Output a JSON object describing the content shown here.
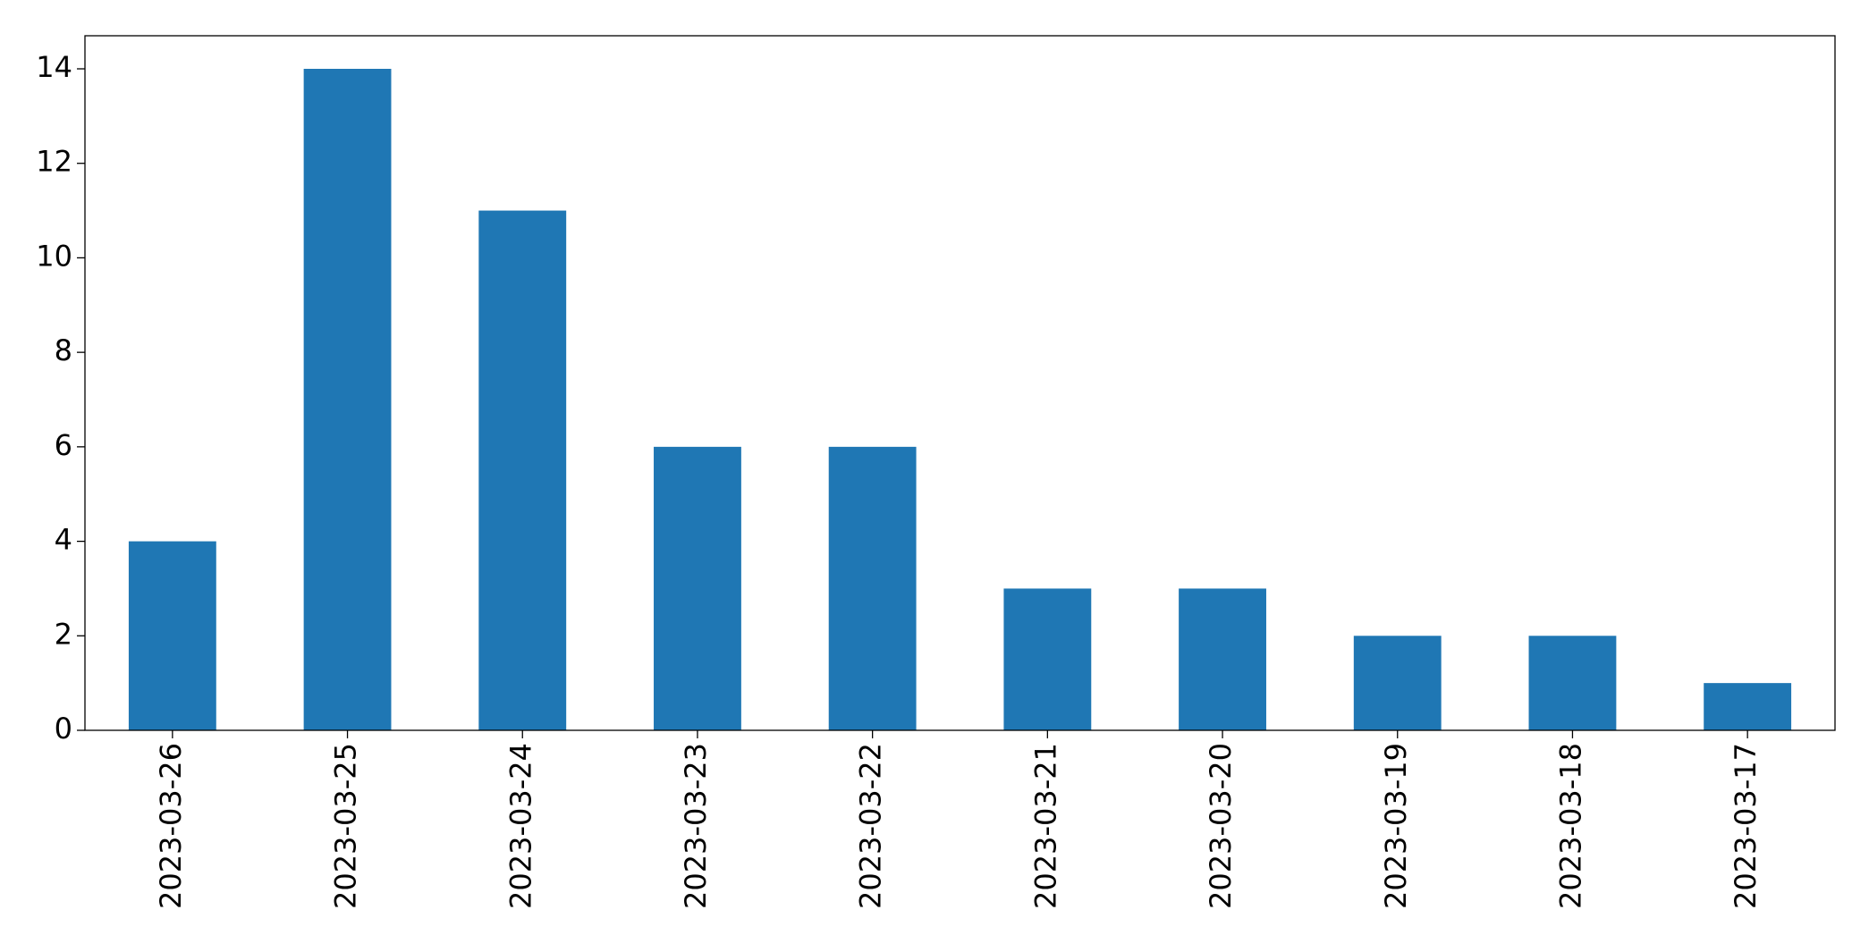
{
  "chart_data": {
    "type": "bar",
    "categories": [
      "2023-03-26",
      "2023-03-25",
      "2023-03-24",
      "2023-03-23",
      "2023-03-22",
      "2023-03-21",
      "2023-03-20",
      "2023-03-19",
      "2023-03-18",
      "2023-03-17"
    ],
    "values": [
      4,
      14,
      11,
      6,
      6,
      3,
      3,
      2,
      2,
      1
    ],
    "color": "#1f77b4",
    "ylim": [
      0,
      14.7
    ],
    "yticks": [
      0,
      2,
      4,
      6,
      8,
      10,
      12,
      14
    ],
    "grid": false
  }
}
